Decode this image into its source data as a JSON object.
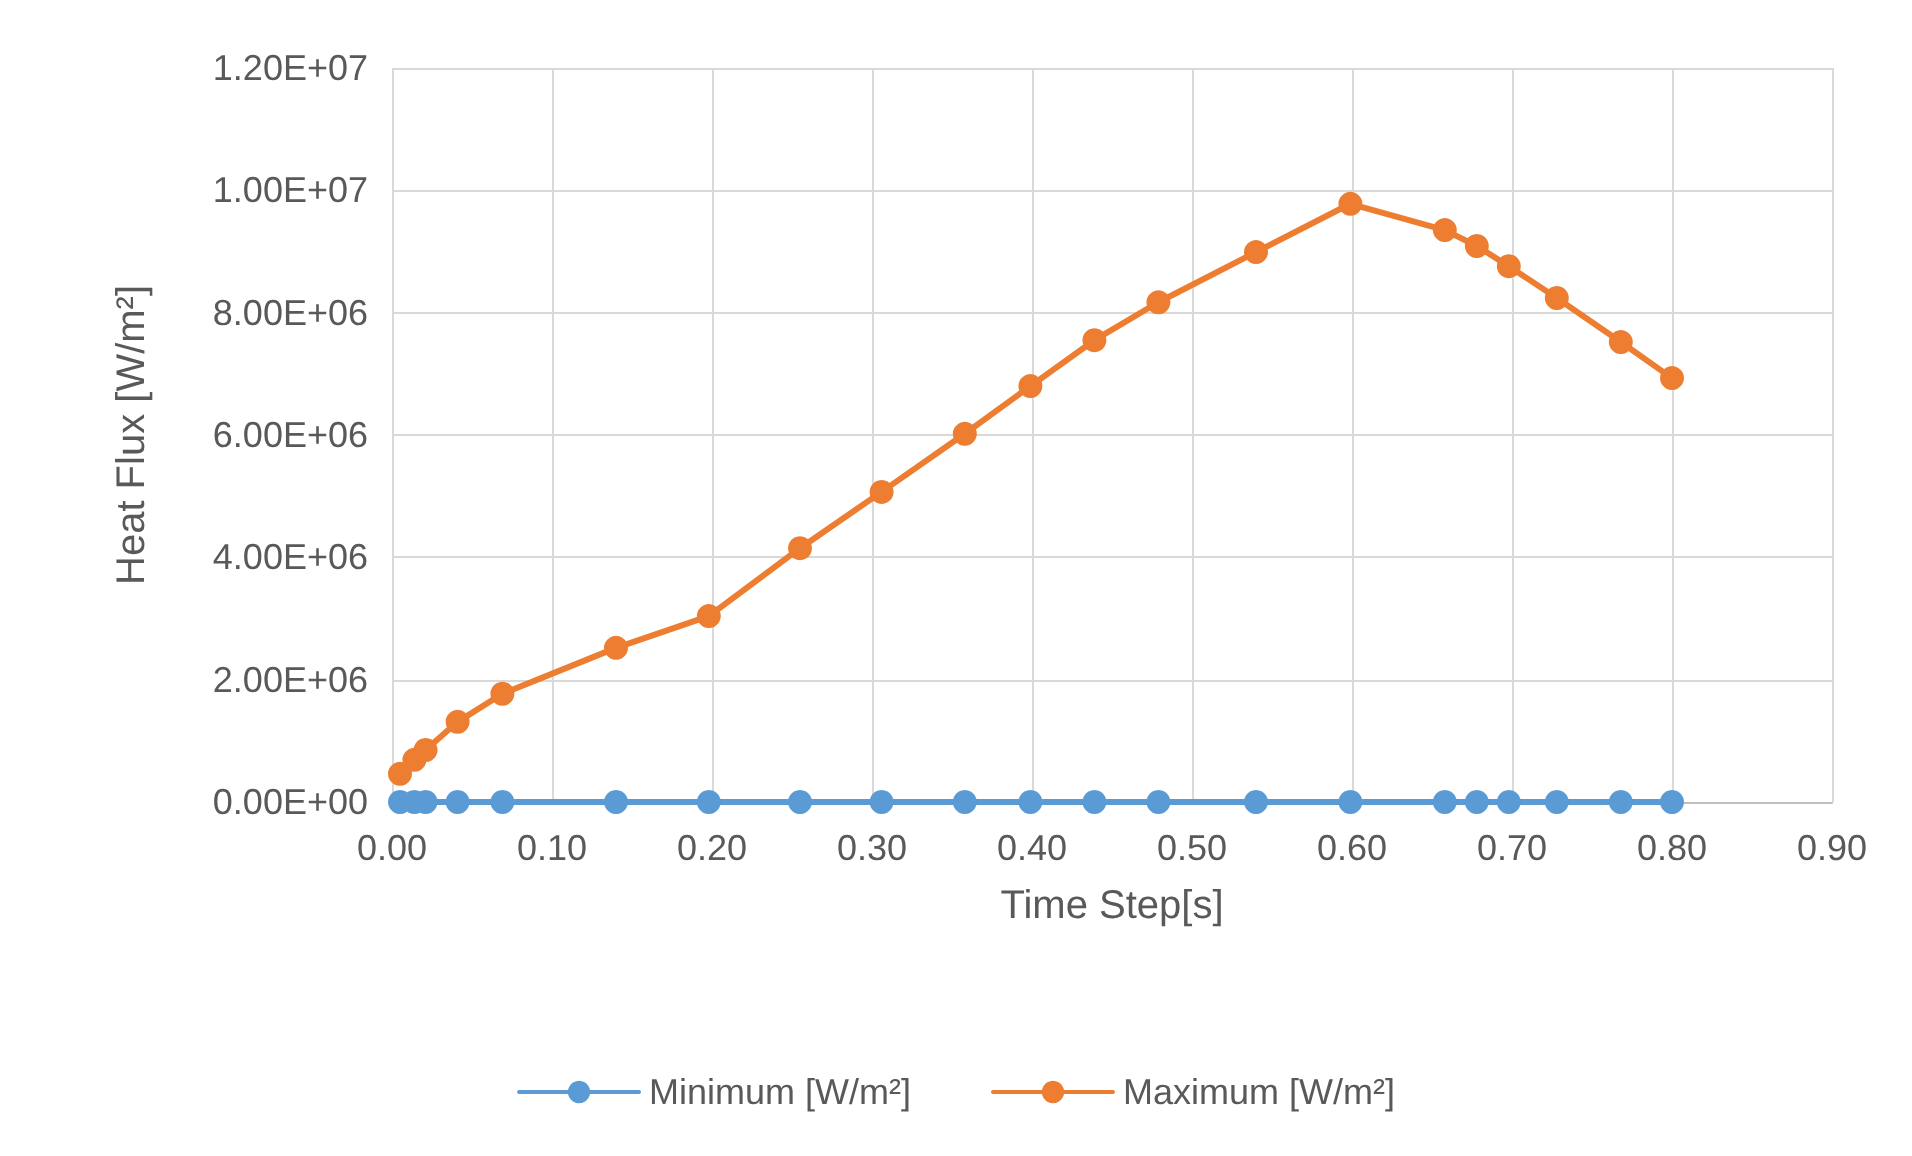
{
  "chart_data": {
    "type": "line",
    "xlabel": "Time Step[s]",
    "ylabel": "Heat Flux [W/m²]",
    "x": [
      0.005,
      0.014,
      0.021,
      0.041,
      0.069,
      0.14,
      0.198,
      0.255,
      0.306,
      0.358,
      0.399,
      0.439,
      0.479,
      0.54,
      0.599,
      0.658,
      0.678,
      0.698,
      0.728,
      0.768,
      0.8
    ],
    "series": [
      {
        "name": "Minimum [W/m²]",
        "color": "#5b9bd5",
        "values": [
          0,
          0,
          0,
          0,
          0,
          0,
          0,
          0,
          0,
          0,
          0,
          0,
          0,
          0,
          0,
          0,
          0,
          0,
          0,
          0,
          0
        ]
      },
      {
        "name": "Maximum [W/m²]",
        "color": "#ed7d31",
        "values": [
          460000,
          690000,
          850000,
          1310000,
          1770000,
          2520000,
          3040000,
          4150000,
          5070000,
          6020000,
          6800000,
          7550000,
          8170000,
          8990000,
          9780000,
          9350000,
          9090000,
          8760000,
          8240000,
          7520000,
          6930000
        ]
      }
    ],
    "xlim": [
      0,
      0.9
    ],
    "xticks": [
      {
        "value": 0,
        "label": "0.00"
      },
      {
        "value": 0.1,
        "label": "0.10"
      },
      {
        "value": 0.2,
        "label": "0.20"
      },
      {
        "value": 0.3,
        "label": "0.30"
      },
      {
        "value": 0.4,
        "label": "0.40"
      },
      {
        "value": 0.5,
        "label": "0.50"
      },
      {
        "value": 0.6,
        "label": "0.60"
      },
      {
        "value": 0.7,
        "label": "0.70"
      },
      {
        "value": 0.8,
        "label": "0.80"
      },
      {
        "value": 0.9,
        "label": "0.90"
      }
    ],
    "ylim": [
      0,
      12000000
    ],
    "yticks": [
      {
        "value": 0,
        "label": "0.00E+00"
      },
      {
        "value": 2000000,
        "label": "2.00E+06"
      },
      {
        "value": 4000000,
        "label": "4.00E+06"
      },
      {
        "value": 6000000,
        "label": "6.00E+06"
      },
      {
        "value": 8000000,
        "label": "8.00E+06"
      },
      {
        "value": 10000000,
        "label": "1.00E+07"
      },
      {
        "value": 12000000,
        "label": "1.20E+07"
      }
    ],
    "grid": true,
    "legend": "bottom",
    "marker": "circle",
    "line_style": "solid"
  }
}
